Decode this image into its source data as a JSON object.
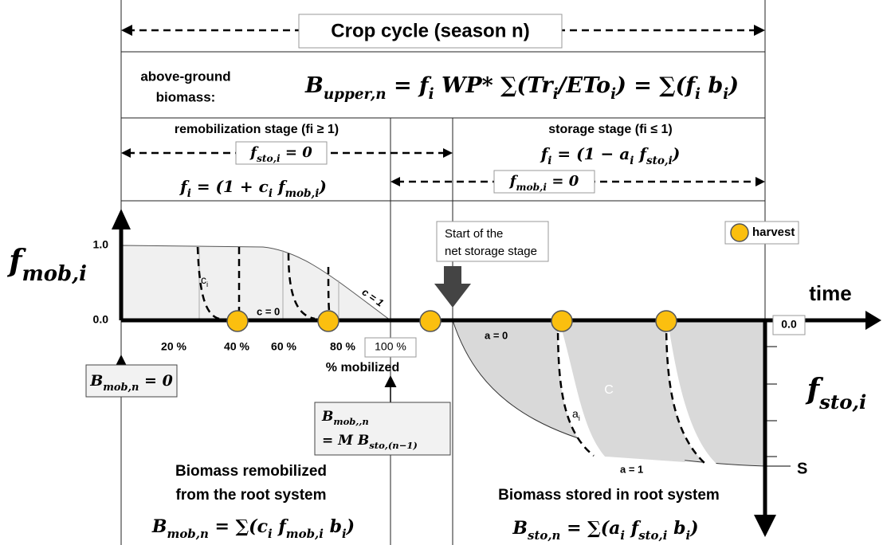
{
  "header": {
    "title": "Crop cycle (season n)",
    "biomass_label": [
      "above-ground",
      "biomass:"
    ],
    "formula": [
      "B",
      "upper,n",
      " = f",
      "i",
      " WP* ∑(Tr",
      "i",
      "/ETo",
      "i",
      ") = ∑(f",
      "i",
      " b",
      "i",
      ")"
    ]
  },
  "remobilization": {
    "title": "remobilization stage (fi ≥ 1)",
    "condition": [
      "f",
      "sto,i",
      " = 0"
    ],
    "formula": [
      "f",
      "i",
      " = (1 + c",
      "i",
      " f",
      "mob,i",
      ")"
    ]
  },
  "storage": {
    "title": "storage stage (fi ≤ 1)",
    "formula": [
      "f",
      "i",
      " = (1 − a",
      "i",
      " f",
      "sto,i",
      ")"
    ],
    "condition": [
      "f",
      "mob,i",
      " = 0"
    ]
  },
  "axes": {
    "fmob_label": [
      "f",
      "mob,i"
    ],
    "fmob_top": "1.0",
    "fmob_zero": "0.0",
    "time": "time",
    "fsto_zero": "0.0",
    "fsto_label": [
      "f",
      "sto,i"
    ],
    "fsto_end": "S",
    "percent_ticks": [
      "20 %",
      "40 %",
      "60 %",
      "80 %",
      "100 %"
    ],
    "percent_label": "% mobilized"
  },
  "curve_labels": {
    "ci": [
      "c",
      "i"
    ],
    "c0": "c = 0",
    "c1": "c = 1",
    "a0": "a = 0",
    "a1": "a = 1",
    "ai": [
      "a",
      "i"
    ],
    "area": "C"
  },
  "legend": {
    "harvest": "harvest"
  },
  "callout": [
    "Start of the",
    "net storage stage"
  ],
  "bmob_zero": [
    "B",
    "mob,n",
    " = 0"
  ],
  "bmob_box": [
    [
      "B",
      "mob,,n"
    ],
    [
      "= M B",
      "sto,(n−1)"
    ]
  ],
  "bottom_left": {
    "lines": [
      "Biomass remobilized",
      "from the root system"
    ],
    "formula": [
      "B",
      "mob,n",
      " = ∑(c",
      "i",
      " f",
      "mob,i",
      " b",
      "i",
      ")"
    ]
  },
  "bottom_right": {
    "lines": [
      "Biomass stored in root system"
    ],
    "formula": [
      "B",
      "sto,n",
      " = ∑(a",
      "i",
      " f",
      "sto,i",
      " b",
      "i",
      ")"
    ]
  }
}
